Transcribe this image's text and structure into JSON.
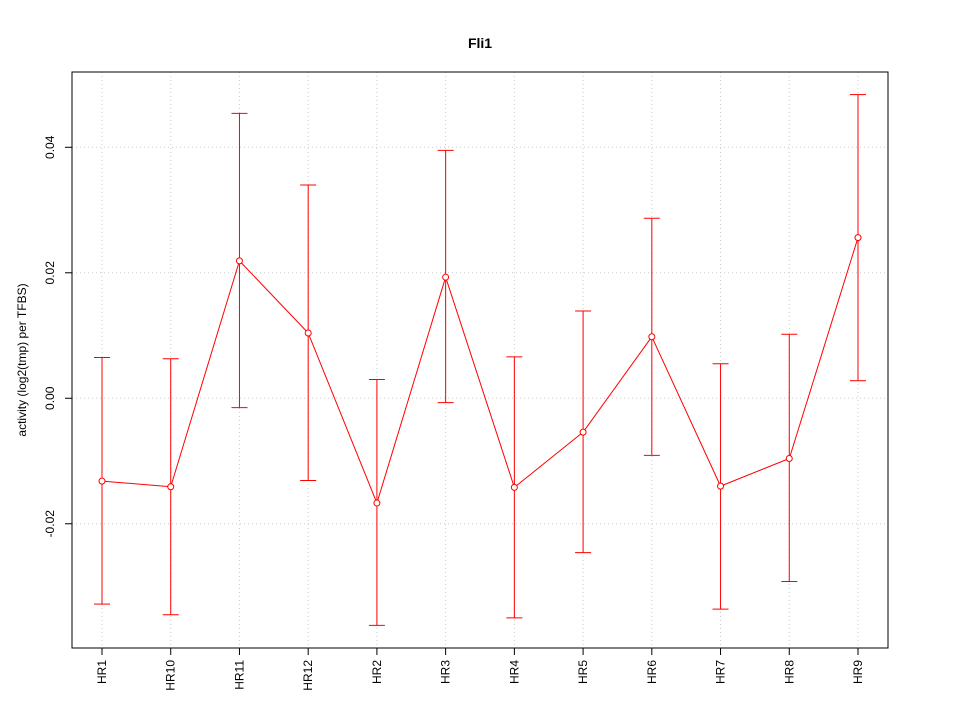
{
  "chart_data": {
    "type": "line",
    "title": "Fli1",
    "xlabel": "",
    "ylabel": "activity (log2(tmp) per TFBS)",
    "categories": [
      "HR1",
      "HR10",
      "HR11",
      "HR12",
      "HR2",
      "HR3",
      "HR4",
      "HR5",
      "HR6",
      "HR7",
      "HR8",
      "HR9"
    ],
    "series": [
      {
        "values": [
          -0.0132,
          -0.0141,
          0.0219,
          0.0104,
          -0.0167,
          0.0193,
          -0.0142,
          -0.0054,
          0.0098,
          -0.014,
          -0.0096,
          0.0256
        ],
        "lower": [
          -0.0328,
          -0.0345,
          -0.0015,
          -0.0131,
          -0.0362,
          -0.0007,
          -0.035,
          -0.0246,
          -0.0091,
          -0.0336,
          -0.0292,
          0.0028
        ],
        "upper": [
          0.0065,
          0.0063,
          0.0454,
          0.034,
          0.003,
          0.0395,
          0.0066,
          0.0139,
          0.0287,
          0.0055,
          0.0102,
          0.0484
        ],
        "color": "#ff0000"
      }
    ],
    "yticks": [
      -0.02,
      0.0,
      0.02,
      0.04
    ],
    "ytick_labels": [
      "-0.02",
      "0.00",
      "0.02",
      "0.04"
    ],
    "ylim": [
      -0.0398,
      0.052
    ],
    "grid": true,
    "grid_color": "#cccccc"
  }
}
